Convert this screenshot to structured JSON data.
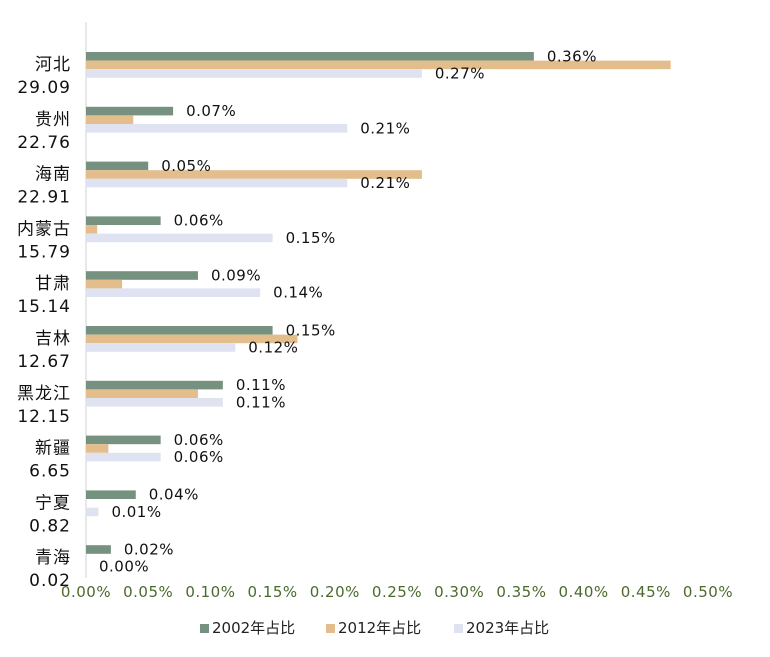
{
  "chart_data": {
    "type": "bar",
    "orientation": "horizontal",
    "title": "",
    "xlabel": "",
    "ylabel": "",
    "xlim": [
      0,
      0.5
    ],
    "x_ticks": [
      "0.00%",
      "0.05%",
      "0.10%",
      "0.15%",
      "0.20%",
      "0.25%",
      "0.30%",
      "0.35%",
      "0.40%",
      "0.45%",
      "0.50%"
    ],
    "grid": false,
    "legend_position": "bottom",
    "categories": [
      {
        "name": "河北",
        "value_label": "29.09"
      },
      {
        "name": "贵州",
        "value_label": "22.76"
      },
      {
        "name": "海南",
        "value_label": "22.91"
      },
      {
        "name": "内蒙古",
        "value_label": "15.79"
      },
      {
        "name": "甘肃",
        "value_label": "15.14"
      },
      {
        "name": "吉林",
        "value_label": "12.67"
      },
      {
        "name": "黑龙江",
        "value_label": "12.15"
      },
      {
        "name": "新疆",
        "value_label": "6.65"
      },
      {
        "name": "宁夏",
        "value_label": "0.82"
      },
      {
        "name": "青海",
        "value_label": "0.02"
      }
    ],
    "series": [
      {
        "name": "2002年占比",
        "color": "#76917f",
        "values": [
          0.36,
          0.07,
          0.05,
          0.06,
          0.09,
          0.15,
          0.11,
          0.06,
          0.04,
          0.02
        ],
        "labels": [
          "0.36%",
          "0.07%",
          "0.05%",
          "0.06%",
          "0.09%",
          "0.15%",
          "0.11%",
          "0.06%",
          "0.04%",
          "0.02%"
        ]
      },
      {
        "name": "2012年占比",
        "color": "#e3bd8b",
        "values": [
          0.47,
          0.038,
          0.27,
          0.009,
          0.029,
          0.17,
          0.09,
          0.018,
          0.0,
          0.0
        ],
        "labels": []
      },
      {
        "name": "2023年占比",
        "color": "#dfe3f1",
        "values": [
          0.27,
          0.21,
          0.21,
          0.15,
          0.14,
          0.12,
          0.11,
          0.06,
          0.01,
          0.0
        ],
        "labels": [
          "0.27%",
          "0.21%",
          "0.21%",
          "0.15%",
          "0.14%",
          "0.12%",
          "0.11%",
          "0.06%",
          "0.01%",
          "0.00%"
        ]
      }
    ]
  }
}
